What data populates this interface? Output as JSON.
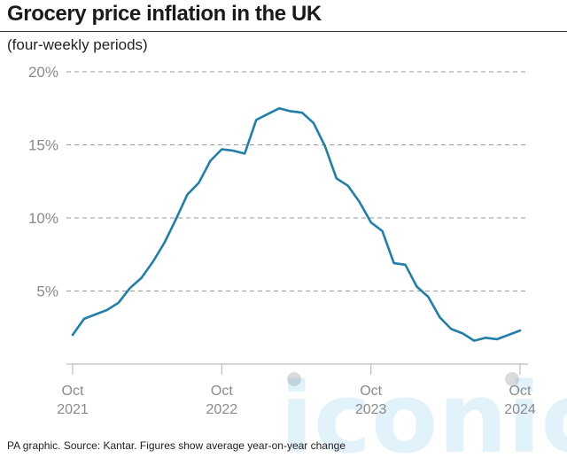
{
  "title": "Grocery price inflation in the UK",
  "subtitle": "(four-weekly periods)",
  "footer": "PA graphic. Source: Kantar. Figures show average year-on-year change",
  "watermark": "iconic",
  "colors": {
    "line": "#1f7fa8",
    "grid": "#9a9a9a",
    "axis": "#bdbdbd",
    "tick_text": "#8a8a8a"
  },
  "chart_data": {
    "type": "line",
    "title": "Grocery price inflation in the UK",
    "subtitle": "(four-weekly periods)",
    "ylim": [
      0,
      20
    ],
    "yticks": [
      5,
      10,
      15,
      20
    ],
    "ytick_labels": [
      "5%",
      "10%",
      "15%",
      "20%"
    ],
    "grid": true,
    "x_range": [
      "2021-10",
      "2024-10"
    ],
    "xticks": [
      {
        "x": "2021-10",
        "label_top": "Oct",
        "label_bottom": "2021"
      },
      {
        "x": "2022-10",
        "label_top": "Oct",
        "label_bottom": "2022"
      },
      {
        "x": "2023-10",
        "label_top": "Oct",
        "label_bottom": "2023"
      },
      {
        "x": "2024-10",
        "label_top": "Oct",
        "label_bottom": "2024"
      }
    ],
    "series": [
      {
        "values": [
          2.0,
          3.1,
          3.4,
          3.7,
          4.2,
          5.2,
          5.9,
          7.0,
          8.3,
          9.9,
          11.6,
          12.4,
          13.9,
          14.7,
          14.6,
          14.4,
          16.7,
          17.1,
          17.5,
          17.3,
          17.2,
          16.5,
          14.9,
          12.7,
          12.2,
          11.1,
          9.7,
          9.1,
          6.9,
          6.8,
          5.3,
          4.6,
          3.2,
          2.4,
          2.1,
          1.6,
          1.8,
          1.7,
          2.0,
          2.3
        ]
      }
    ]
  }
}
